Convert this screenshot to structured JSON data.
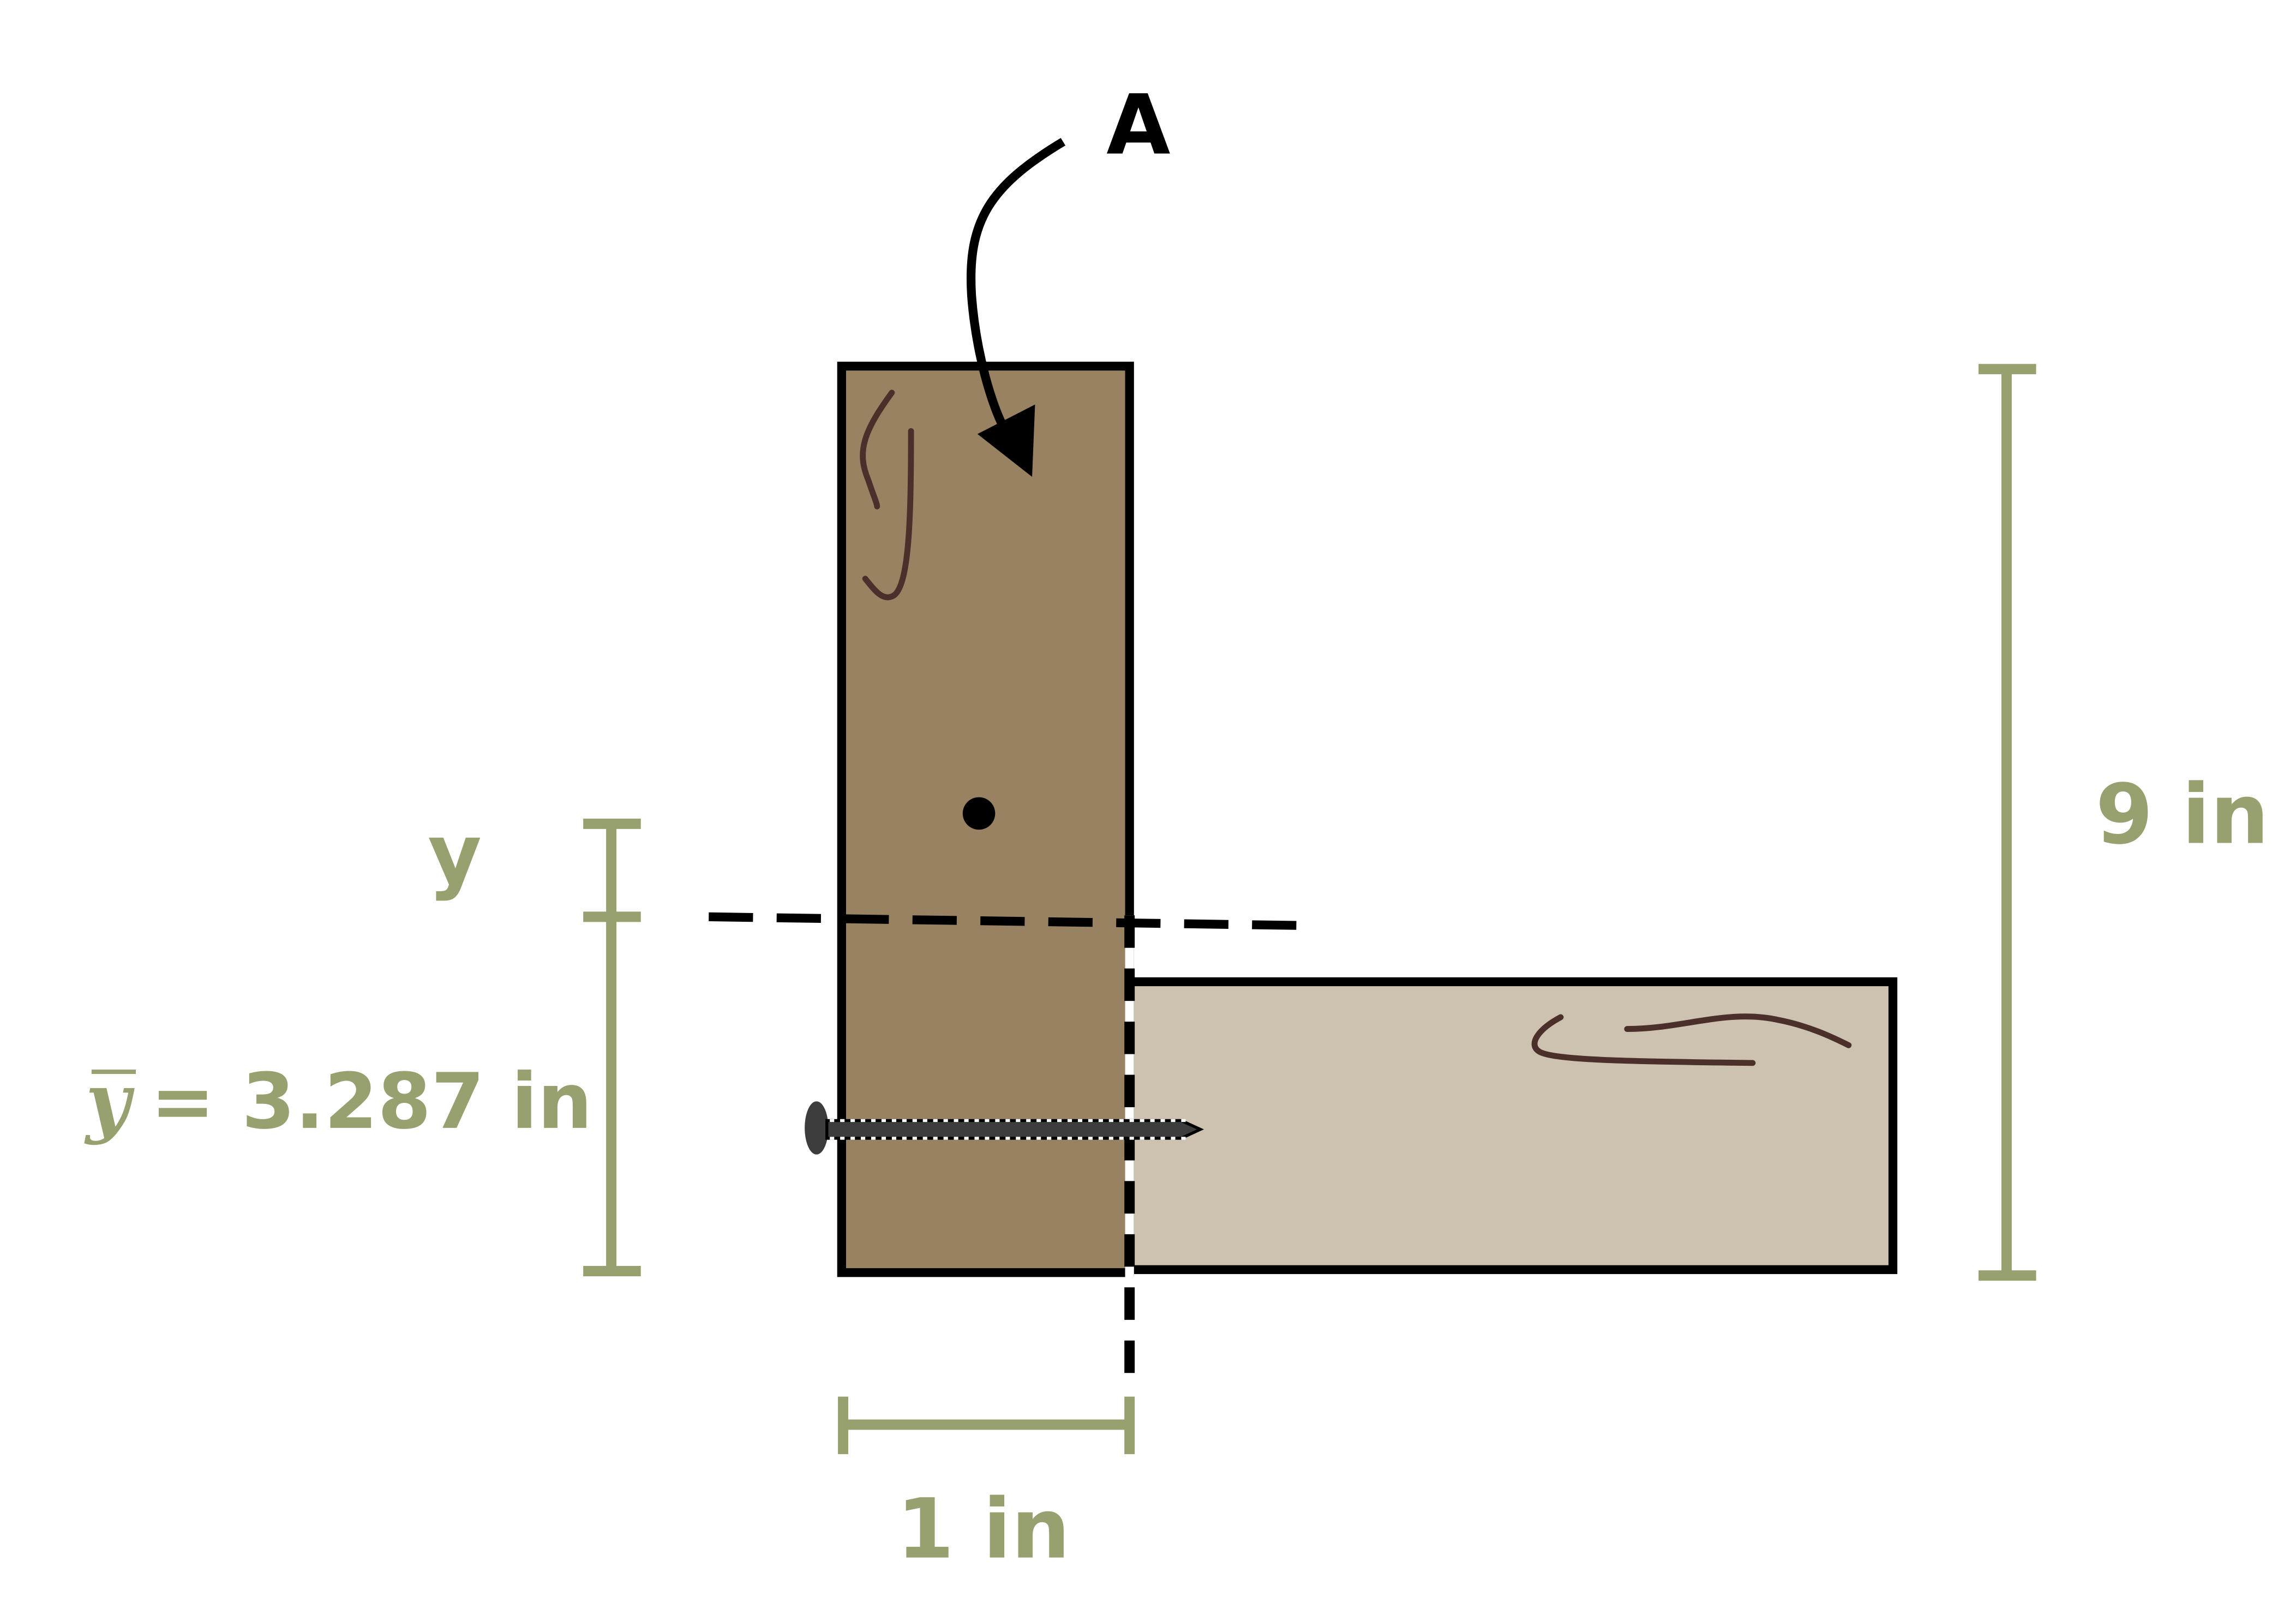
{
  "diagram": {
    "point_label": "A",
    "axis_label": "y",
    "ybar_symbol": "y",
    "ybar_value": "= 3.287 in",
    "height_label": "9 in",
    "width_label": "1 in"
  },
  "colors": {
    "dimension": "#97a06f",
    "vertical_board": "#998262",
    "horizontal_board": "#cdc1b0",
    "outline": "#000000",
    "grain": "#4a2f2b",
    "nail": "#3d3d3d"
  }
}
